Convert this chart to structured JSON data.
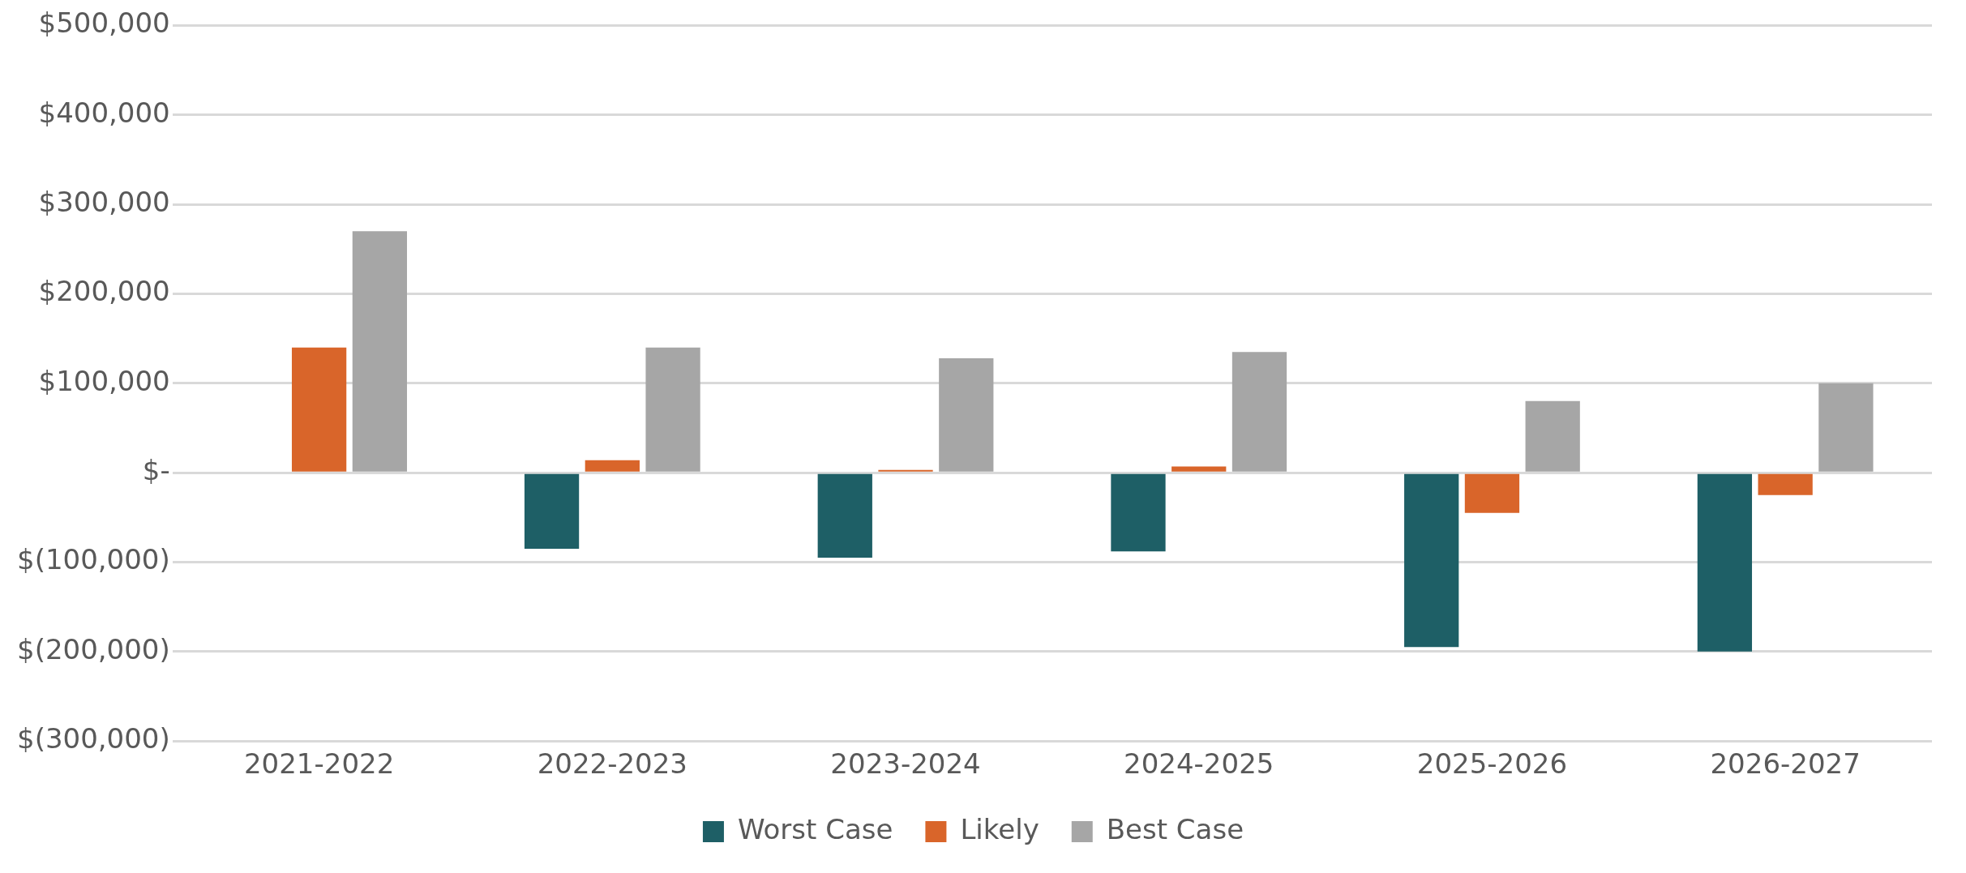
{
  "chart_data": {
    "type": "bar",
    "categories": [
      "2021-2022",
      "2022-2023",
      "2023-2024",
      "2024-2025",
      "2025-2026",
      "2026-2027"
    ],
    "series": [
      {
        "name": "Worst Case",
        "color": "#1e5f66",
        "values": [
          0,
          -85000,
          -95000,
          -88000,
          -195000,
          -200000
        ]
      },
      {
        "name": "Likely",
        "color": "#d9652a",
        "values": [
          140000,
          14000,
          3000,
          7000,
          -45000,
          -25000
        ]
      },
      {
        "name": "Best Case",
        "color": "#a6a6a6",
        "values": [
          270000,
          140000,
          128000,
          135000,
          80000,
          100000
        ]
      }
    ],
    "ylim": [
      -300000,
      500000
    ],
    "yticks": [
      {
        "value": -300000,
        "label": "$(300,000)"
      },
      {
        "value": -200000,
        "label": "$(200,000)"
      },
      {
        "value": -100000,
        "label": "$(100,000)"
      },
      {
        "value": 0,
        "label": "$-"
      },
      {
        "value": 100000,
        "label": "$100,000"
      },
      {
        "value": 200000,
        "label": "$200,000"
      },
      {
        "value": 300000,
        "label": "$300,000"
      },
      {
        "value": 400000,
        "label": "$400,000"
      },
      {
        "value": 500000,
        "label": "$500,000"
      }
    ],
    "grid": "y",
    "legend": "bottom"
  }
}
